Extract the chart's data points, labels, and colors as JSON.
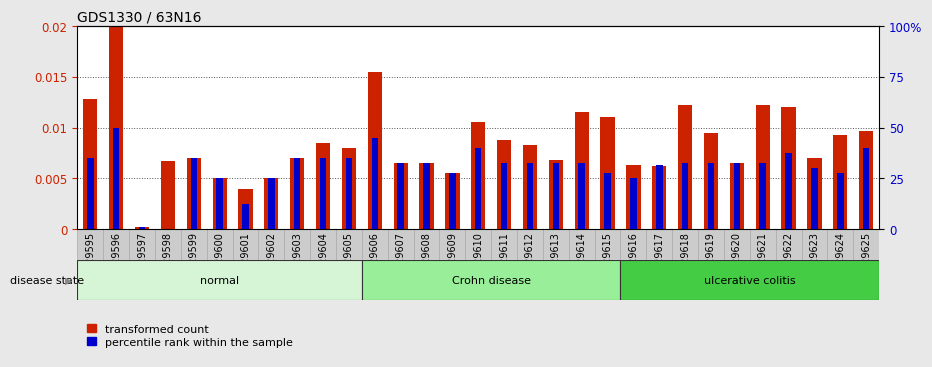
{
  "title": "GDS1330 / 63N16",
  "samples": [
    "GSM29595",
    "GSM29596",
    "GSM29597",
    "GSM29598",
    "GSM29599",
    "GSM29600",
    "GSM29601",
    "GSM29602",
    "GSM29603",
    "GSM29604",
    "GSM29605",
    "GSM29606",
    "GSM29607",
    "GSM29608",
    "GSM29609",
    "GSM29610",
    "GSM29611",
    "GSM29612",
    "GSM29613",
    "GSM29614",
    "GSM29615",
    "GSM29616",
    "GSM29617",
    "GSM29618",
    "GSM29619",
    "GSM29620",
    "GSM29621",
    "GSM29622",
    "GSM29623",
    "GSM29624",
    "GSM29625"
  ],
  "red_values": [
    0.0128,
    0.02,
    0.0002,
    0.0067,
    0.007,
    0.005,
    0.004,
    0.005,
    0.007,
    0.0085,
    0.008,
    0.0155,
    0.0065,
    0.0065,
    0.0055,
    0.0105,
    0.0088,
    0.0083,
    0.0068,
    0.0115,
    0.011,
    0.0063,
    0.0062,
    0.0122,
    0.0095,
    0.0065,
    0.0122,
    0.012,
    0.007,
    0.0093,
    0.0097
  ],
  "blue_values": [
    0.007,
    0.01,
    0.0002,
    0.0,
    0.007,
    0.005,
    0.0025,
    0.005,
    0.007,
    0.007,
    0.007,
    0.009,
    0.0065,
    0.0065,
    0.0055,
    0.008,
    0.0065,
    0.0065,
    0.0065,
    0.0065,
    0.0055,
    0.005,
    0.0063,
    0.0065,
    0.0065,
    0.0065,
    0.0065,
    0.0075,
    0.006,
    0.0055,
    0.008
  ],
  "groups": [
    {
      "label": "normal",
      "start": 0,
      "end": 10,
      "color": "#d6f5d6"
    },
    {
      "label": "Crohn disease",
      "start": 11,
      "end": 20,
      "color": "#99ee99"
    },
    {
      "label": "ulcerative colitis",
      "start": 21,
      "end": 30,
      "color": "#44cc44"
    }
  ],
  "red_color": "#cc2200",
  "blue_color": "#0000cc",
  "ylim_left": [
    0,
    0.02
  ],
  "ylim_right": [
    0,
    100
  ],
  "yticks_left": [
    0,
    0.005,
    0.01,
    0.015,
    0.02
  ],
  "yticks_right": [
    0,
    25,
    50,
    75,
    100
  ],
  "ytick_right_labels": [
    "0",
    "25",
    "50",
    "75",
    "100%"
  ],
  "bg_color": "#e8e8e8",
  "plot_bg": "#ffffff",
  "title_fontsize": 10,
  "tick_fontsize": 7,
  "group_fontsize": 8,
  "legend_fontsize": 8,
  "disease_label": "disease state",
  "legend_labels": [
    "transformed count",
    "percentile rank within the sample"
  ]
}
